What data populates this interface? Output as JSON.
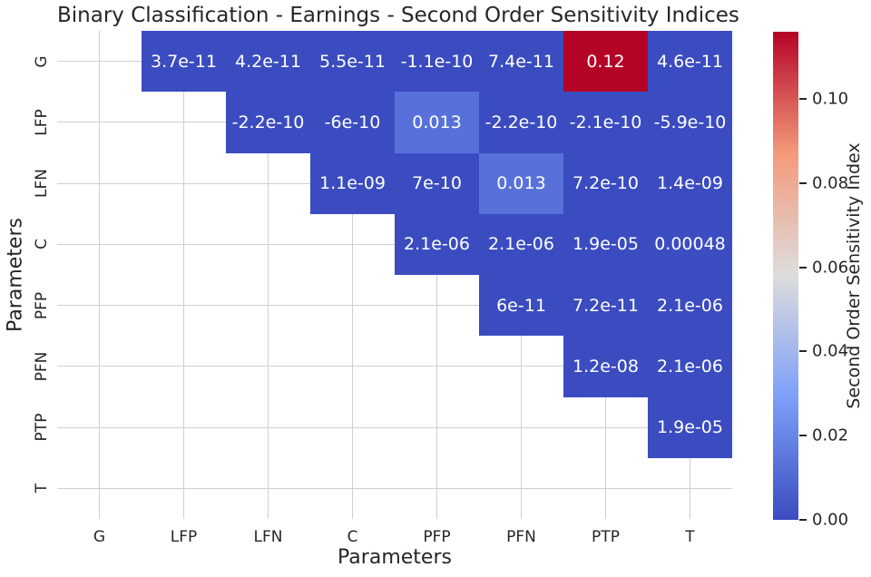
{
  "chart_data": {
    "type": "heatmap",
    "title": "Binary Classification - Earnings - Second Order Sensitivity Indices",
    "xlabel": "Parameters",
    "ylabel": "Parameters",
    "x_categories": [
      "G",
      "LFP",
      "LFN",
      "C",
      "PFP",
      "PFN",
      "PTP",
      "T"
    ],
    "y_categories": [
      "G",
      "LFP",
      "LFN",
      "C",
      "PFP",
      "PFN",
      "PTP",
      "T"
    ],
    "shape": "upper-triangle-excluding-diagonal",
    "grid": true,
    "grid_color": "#cfcfcf",
    "background_color": "#ffffff",
    "annotation_text_color": "#ffffff",
    "tick_label_color": "#262626",
    "cells": [
      {
        "row": "G",
        "col": "LFP",
        "r": 0,
        "c": 1,
        "value": 3.7e-11,
        "label": "3.7e-11"
      },
      {
        "row": "G",
        "col": "LFN",
        "r": 0,
        "c": 2,
        "value": 4.2e-11,
        "label": "4.2e-11"
      },
      {
        "row": "G",
        "col": "C",
        "r": 0,
        "c": 3,
        "value": 5.5e-11,
        "label": "5.5e-11"
      },
      {
        "row": "G",
        "col": "PFP",
        "r": 0,
        "c": 4,
        "value": -1.1e-10,
        "label": "-1.1e-10"
      },
      {
        "row": "G",
        "col": "PFN",
        "r": 0,
        "c": 5,
        "value": 7.4e-11,
        "label": "7.4e-11"
      },
      {
        "row": "G",
        "col": "PTP",
        "r": 0,
        "c": 6,
        "value": 0.12,
        "label": "0.12"
      },
      {
        "row": "G",
        "col": "T",
        "r": 0,
        "c": 7,
        "value": 4.6e-11,
        "label": "4.6e-11"
      },
      {
        "row": "LFP",
        "col": "LFN",
        "r": 1,
        "c": 2,
        "value": -2.2e-10,
        "label": "-2.2e-10"
      },
      {
        "row": "LFP",
        "col": "C",
        "r": 1,
        "c": 3,
        "value": -6e-10,
        "label": "-6e-10"
      },
      {
        "row": "LFP",
        "col": "PFP",
        "r": 1,
        "c": 4,
        "value": 0.013,
        "label": "0.013"
      },
      {
        "row": "LFP",
        "col": "PFN",
        "r": 1,
        "c": 5,
        "value": -2.2e-10,
        "label": "-2.2e-10"
      },
      {
        "row": "LFP",
        "col": "PTP",
        "r": 1,
        "c": 6,
        "value": -2.1e-10,
        "label": "-2.1e-10"
      },
      {
        "row": "LFP",
        "col": "T",
        "r": 1,
        "c": 7,
        "value": -5.9e-10,
        "label": "-5.9e-10"
      },
      {
        "row": "LFN",
        "col": "C",
        "r": 2,
        "c": 3,
        "value": 1.1e-09,
        "label": "1.1e-09"
      },
      {
        "row": "LFN",
        "col": "PFP",
        "r": 2,
        "c": 4,
        "value": 7e-10,
        "label": "7e-10"
      },
      {
        "row": "LFN",
        "col": "PFN",
        "r": 2,
        "c": 5,
        "value": 0.013,
        "label": "0.013"
      },
      {
        "row": "LFN",
        "col": "PTP",
        "r": 2,
        "c": 6,
        "value": 7.2e-10,
        "label": "7.2e-10"
      },
      {
        "row": "LFN",
        "col": "T",
        "r": 2,
        "c": 7,
        "value": 1.4e-09,
        "label": "1.4e-09"
      },
      {
        "row": "C",
        "col": "PFP",
        "r": 3,
        "c": 4,
        "value": 2.1e-06,
        "label": "2.1e-06"
      },
      {
        "row": "C",
        "col": "PFN",
        "r": 3,
        "c": 5,
        "value": 2.1e-06,
        "label": "2.1e-06"
      },
      {
        "row": "C",
        "col": "PTP",
        "r": 3,
        "c": 6,
        "value": 1.9e-05,
        "label": "1.9e-05"
      },
      {
        "row": "C",
        "col": "T",
        "r": 3,
        "c": 7,
        "value": 0.00048,
        "label": "0.00048"
      },
      {
        "row": "PFP",
        "col": "PFN",
        "r": 4,
        "c": 5,
        "value": 6e-11,
        "label": "6e-11"
      },
      {
        "row": "PFP",
        "col": "PTP",
        "r": 4,
        "c": 6,
        "value": 7.2e-11,
        "label": "7.2e-11"
      },
      {
        "row": "PFP",
        "col": "T",
        "r": 4,
        "c": 7,
        "value": 2.1e-06,
        "label": "2.1e-06"
      },
      {
        "row": "PFN",
        "col": "PTP",
        "r": 5,
        "c": 6,
        "value": 1.2e-08,
        "label": "1.2e-08"
      },
      {
        "row": "PFN",
        "col": "T",
        "r": 5,
        "c": 7,
        "value": 2.1e-06,
        "label": "2.1e-06"
      },
      {
        "row": "PTP",
        "col": "T",
        "r": 6,
        "c": 7,
        "value": 1.9e-05,
        "label": "1.9e-05"
      }
    ],
    "colorbar": {
      "label": "Second Order Sensitivity Index",
      "vmin": 0.0,
      "vmax": 0.116,
      "ticks": [
        {
          "value": 0.0,
          "label": "0.00"
        },
        {
          "value": 0.02,
          "label": "0.02"
        },
        {
          "value": 0.04,
          "label": "0.04"
        },
        {
          "value": 0.06,
          "label": "0.06"
        },
        {
          "value": 0.08,
          "label": "0.08"
        },
        {
          "value": 0.1,
          "label": "0.10"
        }
      ]
    },
    "colormap": {
      "name": "coolwarm",
      "stops": [
        {
          "t": 0.0,
          "color": "#3b4cc0"
        },
        {
          "t": 0.25,
          "color": "#7c9ff9"
        },
        {
          "t": 0.5,
          "color": "#dddddd"
        },
        {
          "t": 0.75,
          "color": "#f49a7b"
        },
        {
          "t": 1.0,
          "color": "#b40426"
        }
      ]
    }
  }
}
